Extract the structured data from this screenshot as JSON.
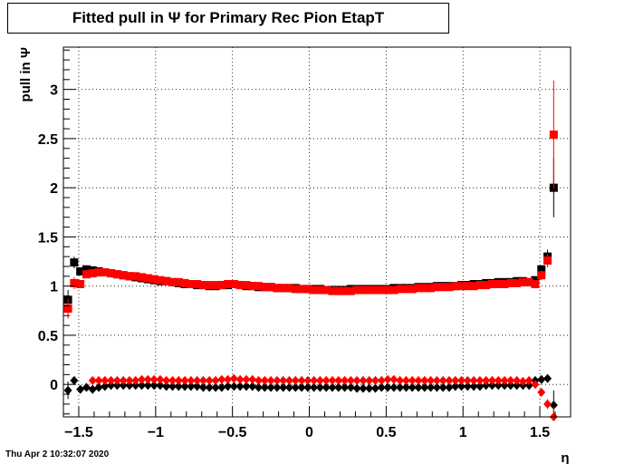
{
  "title": "Fitted pull in  Ψ  for Primary Rec Pion EtapT",
  "timestamp": "Thu Apr  2 10:32:07 2020",
  "chart_data": {
    "type": "scatter",
    "title": "Fitted pull in  Ψ  for Primary Rec Pion EtapT",
    "xlabel": "η",
    "ylabel": "pull in  Ψ",
    "xlim": [
      -1.6,
      1.7
    ],
    "ylim": [
      -0.33,
      3.43
    ],
    "grid": true,
    "x_ticks": [
      {
        "value": -1.5,
        "label": "−1.5"
      },
      {
        "value": -1.0,
        "label": "−1"
      },
      {
        "value": -0.5,
        "label": "−0.5"
      },
      {
        "value": 0.0,
        "label": "0"
      },
      {
        "value": 0.5,
        "label": "0.5"
      },
      {
        "value": 1.0,
        "label": "1"
      },
      {
        "value": 1.5,
        "label": "1.5"
      }
    ],
    "y_ticks": [
      {
        "value": 0.0,
        "label": "0"
      },
      {
        "value": 0.5,
        "label": "0.5"
      },
      {
        "value": 1.0,
        "label": "1"
      },
      {
        "value": 1.5,
        "label": "1.5"
      },
      {
        "value": 2.0,
        "label": "2"
      },
      {
        "value": 2.5,
        "label": "2.5"
      },
      {
        "value": 3.0,
        "label": "3"
      }
    ],
    "series": [
      {
        "marker": "square",
        "color": "#000000",
        "x": [
          -1.57,
          -1.53,
          -1.49,
          -1.45,
          -1.41,
          -1.37,
          -1.33,
          -1.29,
          -1.25,
          -1.21,
          -1.17,
          -1.13,
          -1.09,
          -1.05,
          -1.01,
          -0.97,
          -0.93,
          -0.89,
          -0.85,
          -0.81,
          -0.77,
          -0.73,
          -0.69,
          -0.65,
          -0.61,
          -0.57,
          -0.53,
          -0.49,
          -0.45,
          -0.41,
          -0.37,
          -0.33,
          -0.29,
          -0.25,
          -0.21,
          -0.17,
          -0.13,
          -0.09,
          -0.05,
          -0.01,
          0.03,
          0.07,
          0.11,
          0.15,
          0.19,
          0.23,
          0.27,
          0.31,
          0.35,
          0.39,
          0.43,
          0.47,
          0.51,
          0.55,
          0.59,
          0.63,
          0.67,
          0.71,
          0.75,
          0.79,
          0.83,
          0.87,
          0.91,
          0.95,
          0.99,
          1.03,
          1.07,
          1.11,
          1.15,
          1.19,
          1.23,
          1.27,
          1.31,
          1.35,
          1.39,
          1.43,
          1.47,
          1.51,
          1.55,
          1.59
        ],
        "y": [
          0.86,
          1.24,
          1.15,
          1.17,
          1.16,
          1.15,
          1.14,
          1.13,
          1.12,
          1.11,
          1.1,
          1.09,
          1.08,
          1.07,
          1.06,
          1.05,
          1.05,
          1.04,
          1.03,
          1.02,
          1.02,
          1.01,
          1.01,
          1.0,
          1.0,
          1.01,
          1.01,
          1.02,
          1.01,
          1.0,
          1.0,
          0.99,
          0.99,
          0.99,
          0.98,
          0.98,
          0.98,
          0.98,
          0.97,
          0.97,
          0.97,
          0.97,
          0.96,
          0.96,
          0.96,
          0.96,
          0.97,
          0.97,
          0.97,
          0.97,
          0.97,
          0.97,
          0.97,
          0.98,
          0.98,
          0.98,
          0.98,
          0.99,
          0.99,
          0.99,
          1.0,
          1.0,
          1.0,
          1.0,
          1.01,
          1.01,
          1.02,
          1.02,
          1.03,
          1.03,
          1.04,
          1.04,
          1.04,
          1.05,
          1.05,
          1.04,
          1.06,
          1.17,
          1.3,
          2.0
        ],
        "err": [
          0.1,
          0.06,
          0.03,
          0.02,
          0.02,
          0.02,
          0.02,
          0.02,
          0.02,
          0.02,
          0.02,
          0.02,
          0.02,
          0.02,
          0.02,
          0.02,
          0.02,
          0.02,
          0.02,
          0.02,
          0.02,
          0.02,
          0.02,
          0.02,
          0.02,
          0.02,
          0.02,
          0.02,
          0.02,
          0.02,
          0.02,
          0.02,
          0.02,
          0.02,
          0.02,
          0.02,
          0.02,
          0.02,
          0.02,
          0.02,
          0.02,
          0.02,
          0.02,
          0.02,
          0.02,
          0.02,
          0.02,
          0.02,
          0.02,
          0.02,
          0.02,
          0.02,
          0.02,
          0.02,
          0.02,
          0.02,
          0.02,
          0.02,
          0.02,
          0.02,
          0.02,
          0.02,
          0.02,
          0.02,
          0.02,
          0.02,
          0.02,
          0.02,
          0.02,
          0.02,
          0.02,
          0.02,
          0.02,
          0.02,
          0.02,
          0.02,
          0.03,
          0.04,
          0.07,
          0.3
        ]
      },
      {
        "marker": "square",
        "color": "#ff0000",
        "x": [
          -1.57,
          -1.53,
          -1.49,
          -1.45,
          -1.41,
          -1.37,
          -1.33,
          -1.29,
          -1.25,
          -1.21,
          -1.17,
          -1.13,
          -1.09,
          -1.05,
          -1.01,
          -0.97,
          -0.93,
          -0.89,
          -0.85,
          -0.81,
          -0.77,
          -0.73,
          -0.69,
          -0.65,
          -0.61,
          -0.57,
          -0.53,
          -0.49,
          -0.45,
          -0.41,
          -0.37,
          -0.33,
          -0.29,
          -0.25,
          -0.21,
          -0.17,
          -0.13,
          -0.09,
          -0.05,
          -0.01,
          0.03,
          0.07,
          0.11,
          0.15,
          0.19,
          0.23,
          0.27,
          0.31,
          0.35,
          0.39,
          0.43,
          0.47,
          0.51,
          0.55,
          0.59,
          0.63,
          0.67,
          0.71,
          0.75,
          0.79,
          0.83,
          0.87,
          0.91,
          0.95,
          0.99,
          1.03,
          1.07,
          1.11,
          1.15,
          1.19,
          1.23,
          1.27,
          1.31,
          1.35,
          1.39,
          1.43,
          1.47,
          1.51,
          1.55,
          1.59
        ],
        "y": [
          0.77,
          1.03,
          1.02,
          1.12,
          1.13,
          1.14,
          1.14,
          1.13,
          1.12,
          1.11,
          1.1,
          1.1,
          1.09,
          1.08,
          1.07,
          1.06,
          1.05,
          1.04,
          1.04,
          1.03,
          1.02,
          1.02,
          1.01,
          1.01,
          1.01,
          1.01,
          1.02,
          1.02,
          1.01,
          1.01,
          1.0,
          1.0,
          0.99,
          0.99,
          0.98,
          0.98,
          0.98,
          0.97,
          0.97,
          0.97,
          0.96,
          0.96,
          0.96,
          0.95,
          0.95,
          0.95,
          0.95,
          0.96,
          0.96,
          0.96,
          0.96,
          0.96,
          0.96,
          0.96,
          0.97,
          0.97,
          0.97,
          0.98,
          0.98,
          0.98,
          0.99,
          0.99,
          0.99,
          1.0,
          1.0,
          1.0,
          1.0,
          1.01,
          1.01,
          1.02,
          1.02,
          1.02,
          1.03,
          1.03,
          1.04,
          1.04,
          1.02,
          1.11,
          1.26,
          2.54
        ],
        "err": [
          0.1,
          0.06,
          0.03,
          0.02,
          0.02,
          0.02,
          0.02,
          0.02,
          0.02,
          0.02,
          0.02,
          0.02,
          0.02,
          0.02,
          0.02,
          0.02,
          0.02,
          0.02,
          0.02,
          0.02,
          0.02,
          0.02,
          0.02,
          0.02,
          0.02,
          0.02,
          0.02,
          0.02,
          0.02,
          0.02,
          0.02,
          0.02,
          0.02,
          0.02,
          0.02,
          0.02,
          0.02,
          0.02,
          0.02,
          0.02,
          0.02,
          0.02,
          0.02,
          0.02,
          0.02,
          0.02,
          0.02,
          0.02,
          0.02,
          0.02,
          0.02,
          0.02,
          0.02,
          0.02,
          0.02,
          0.02,
          0.02,
          0.02,
          0.02,
          0.02,
          0.02,
          0.02,
          0.02,
          0.02,
          0.02,
          0.02,
          0.02,
          0.02,
          0.02,
          0.02,
          0.02,
          0.02,
          0.02,
          0.02,
          0.02,
          0.02,
          0.04,
          0.05,
          0.07,
          0.55
        ]
      },
      {
        "marker": "diamond",
        "color": "#000000",
        "x": [
          -1.57,
          -1.53,
          -1.49,
          -1.45,
          -1.41,
          -1.37,
          -1.33,
          -1.29,
          -1.25,
          -1.21,
          -1.17,
          -1.13,
          -1.09,
          -1.05,
          -1.01,
          -0.97,
          -0.93,
          -0.89,
          -0.85,
          -0.81,
          -0.77,
          -0.73,
          -0.69,
          -0.65,
          -0.61,
          -0.57,
          -0.53,
          -0.49,
          -0.45,
          -0.41,
          -0.37,
          -0.33,
          -0.29,
          -0.25,
          -0.21,
          -0.17,
          -0.13,
          -0.09,
          -0.05,
          -0.01,
          0.03,
          0.07,
          0.11,
          0.15,
          0.19,
          0.23,
          0.27,
          0.31,
          0.35,
          0.39,
          0.43,
          0.47,
          0.51,
          0.55,
          0.59,
          0.63,
          0.67,
          0.71,
          0.75,
          0.79,
          0.83,
          0.87,
          0.91,
          0.95,
          0.99,
          1.03,
          1.07,
          1.11,
          1.15,
          1.19,
          1.23,
          1.27,
          1.31,
          1.35,
          1.39,
          1.43,
          1.47,
          1.51,
          1.55,
          1.59
        ],
        "y": [
          -0.06,
          0.04,
          -0.05,
          -0.03,
          -0.05,
          -0.03,
          -0.02,
          -0.01,
          -0.01,
          -0.01,
          -0.01,
          -0.01,
          -0.01,
          -0.01,
          -0.01,
          -0.01,
          -0.02,
          -0.02,
          -0.02,
          -0.02,
          -0.02,
          -0.02,
          -0.03,
          -0.03,
          -0.03,
          -0.03,
          -0.02,
          -0.02,
          -0.02,
          -0.02,
          -0.02,
          -0.03,
          -0.03,
          -0.03,
          -0.03,
          -0.03,
          -0.03,
          -0.03,
          -0.03,
          -0.03,
          -0.03,
          -0.03,
          -0.03,
          -0.03,
          -0.03,
          -0.03,
          -0.03,
          -0.04,
          -0.04,
          -0.04,
          -0.04,
          -0.03,
          -0.03,
          -0.03,
          -0.03,
          -0.03,
          -0.03,
          -0.03,
          -0.03,
          -0.03,
          -0.03,
          -0.03,
          -0.03,
          -0.02,
          -0.02,
          -0.02,
          -0.02,
          -0.02,
          -0.01,
          -0.01,
          -0.01,
          -0.01,
          -0.01,
          -0.01,
          -0.01,
          -0.01,
          0.04,
          0.05,
          0.06,
          -0.21
        ],
        "err": [
          0.09,
          0.04,
          0.02,
          0.02,
          0.02,
          0.02,
          0.02,
          0.02,
          0.02,
          0.02,
          0.02,
          0.02,
          0.02,
          0.02,
          0.02,
          0.02,
          0.02,
          0.02,
          0.02,
          0.02,
          0.02,
          0.02,
          0.02,
          0.02,
          0.02,
          0.02,
          0.02,
          0.02,
          0.02,
          0.02,
          0.02,
          0.02,
          0.02,
          0.02,
          0.02,
          0.02,
          0.02,
          0.02,
          0.02,
          0.02,
          0.02,
          0.02,
          0.02,
          0.02,
          0.02,
          0.02,
          0.02,
          0.02,
          0.02,
          0.02,
          0.02,
          0.02,
          0.02,
          0.02,
          0.02,
          0.02,
          0.02,
          0.02,
          0.02,
          0.02,
          0.02,
          0.02,
          0.02,
          0.02,
          0.02,
          0.02,
          0.02,
          0.02,
          0.02,
          0.02,
          0.02,
          0.02,
          0.02,
          0.02,
          0.02,
          0.02,
          0.02,
          0.03,
          0.04,
          0.15
        ]
      },
      {
        "marker": "diamond",
        "color": "#ff0000",
        "x": [
          -1.41,
          -1.37,
          -1.33,
          -1.29,
          -1.25,
          -1.21,
          -1.17,
          -1.13,
          -1.09,
          -1.05,
          -1.01,
          -0.97,
          -0.93,
          -0.89,
          -0.85,
          -0.81,
          -0.77,
          -0.73,
          -0.69,
          -0.65,
          -0.61,
          -0.57,
          -0.53,
          -0.49,
          -0.45,
          -0.41,
          -0.37,
          -0.33,
          -0.29,
          -0.25,
          -0.21,
          -0.17,
          -0.13,
          -0.09,
          -0.05,
          -0.01,
          0.03,
          0.07,
          0.11,
          0.15,
          0.19,
          0.23,
          0.27,
          0.31,
          0.35,
          0.39,
          0.43,
          0.47,
          0.51,
          0.55,
          0.59,
          0.63,
          0.67,
          0.71,
          0.75,
          0.79,
          0.83,
          0.87,
          0.91,
          0.95,
          0.99,
          1.03,
          1.07,
          1.11,
          1.15,
          1.19,
          1.23,
          1.27,
          1.31,
          1.35,
          1.39,
          1.43,
          1.47,
          1.51,
          1.55,
          1.59
        ],
        "y": [
          0.04,
          0.04,
          0.04,
          0.04,
          0.04,
          0.04,
          0.04,
          0.04,
          0.05,
          0.05,
          0.05,
          0.05,
          0.04,
          0.04,
          0.04,
          0.04,
          0.04,
          0.04,
          0.04,
          0.04,
          0.04,
          0.05,
          0.05,
          0.06,
          0.05,
          0.05,
          0.05,
          0.04,
          0.04,
          0.04,
          0.04,
          0.04,
          0.04,
          0.04,
          0.04,
          0.04,
          0.04,
          0.04,
          0.04,
          0.04,
          0.04,
          0.04,
          0.04,
          0.04,
          0.04,
          0.04,
          0.04,
          0.04,
          0.05,
          0.05,
          0.04,
          0.04,
          0.04,
          0.04,
          0.04,
          0.04,
          0.04,
          0.04,
          0.04,
          0.04,
          0.04,
          0.04,
          0.04,
          0.04,
          0.04,
          0.04,
          0.04,
          0.04,
          0.04,
          0.04,
          0.03,
          0.04,
          0.0,
          -0.08,
          -0.2,
          -0.33
        ],
        "err": [
          0.02,
          0.02,
          0.02,
          0.02,
          0.02,
          0.02,
          0.02,
          0.02,
          0.02,
          0.02,
          0.02,
          0.02,
          0.02,
          0.02,
          0.02,
          0.02,
          0.02,
          0.02,
          0.02,
          0.02,
          0.02,
          0.02,
          0.02,
          0.02,
          0.02,
          0.02,
          0.02,
          0.02,
          0.02,
          0.02,
          0.02,
          0.02,
          0.02,
          0.02,
          0.02,
          0.02,
          0.02,
          0.02,
          0.02,
          0.02,
          0.02,
          0.02,
          0.02,
          0.02,
          0.02,
          0.02,
          0.02,
          0.02,
          0.02,
          0.02,
          0.02,
          0.02,
          0.02,
          0.02,
          0.02,
          0.02,
          0.02,
          0.02,
          0.02,
          0.02,
          0.02,
          0.02,
          0.02,
          0.02,
          0.02,
          0.02,
          0.02,
          0.02,
          0.02,
          0.02,
          0.02,
          0.02,
          0.03,
          0.04,
          0.05,
          0.1
        ]
      }
    ]
  }
}
